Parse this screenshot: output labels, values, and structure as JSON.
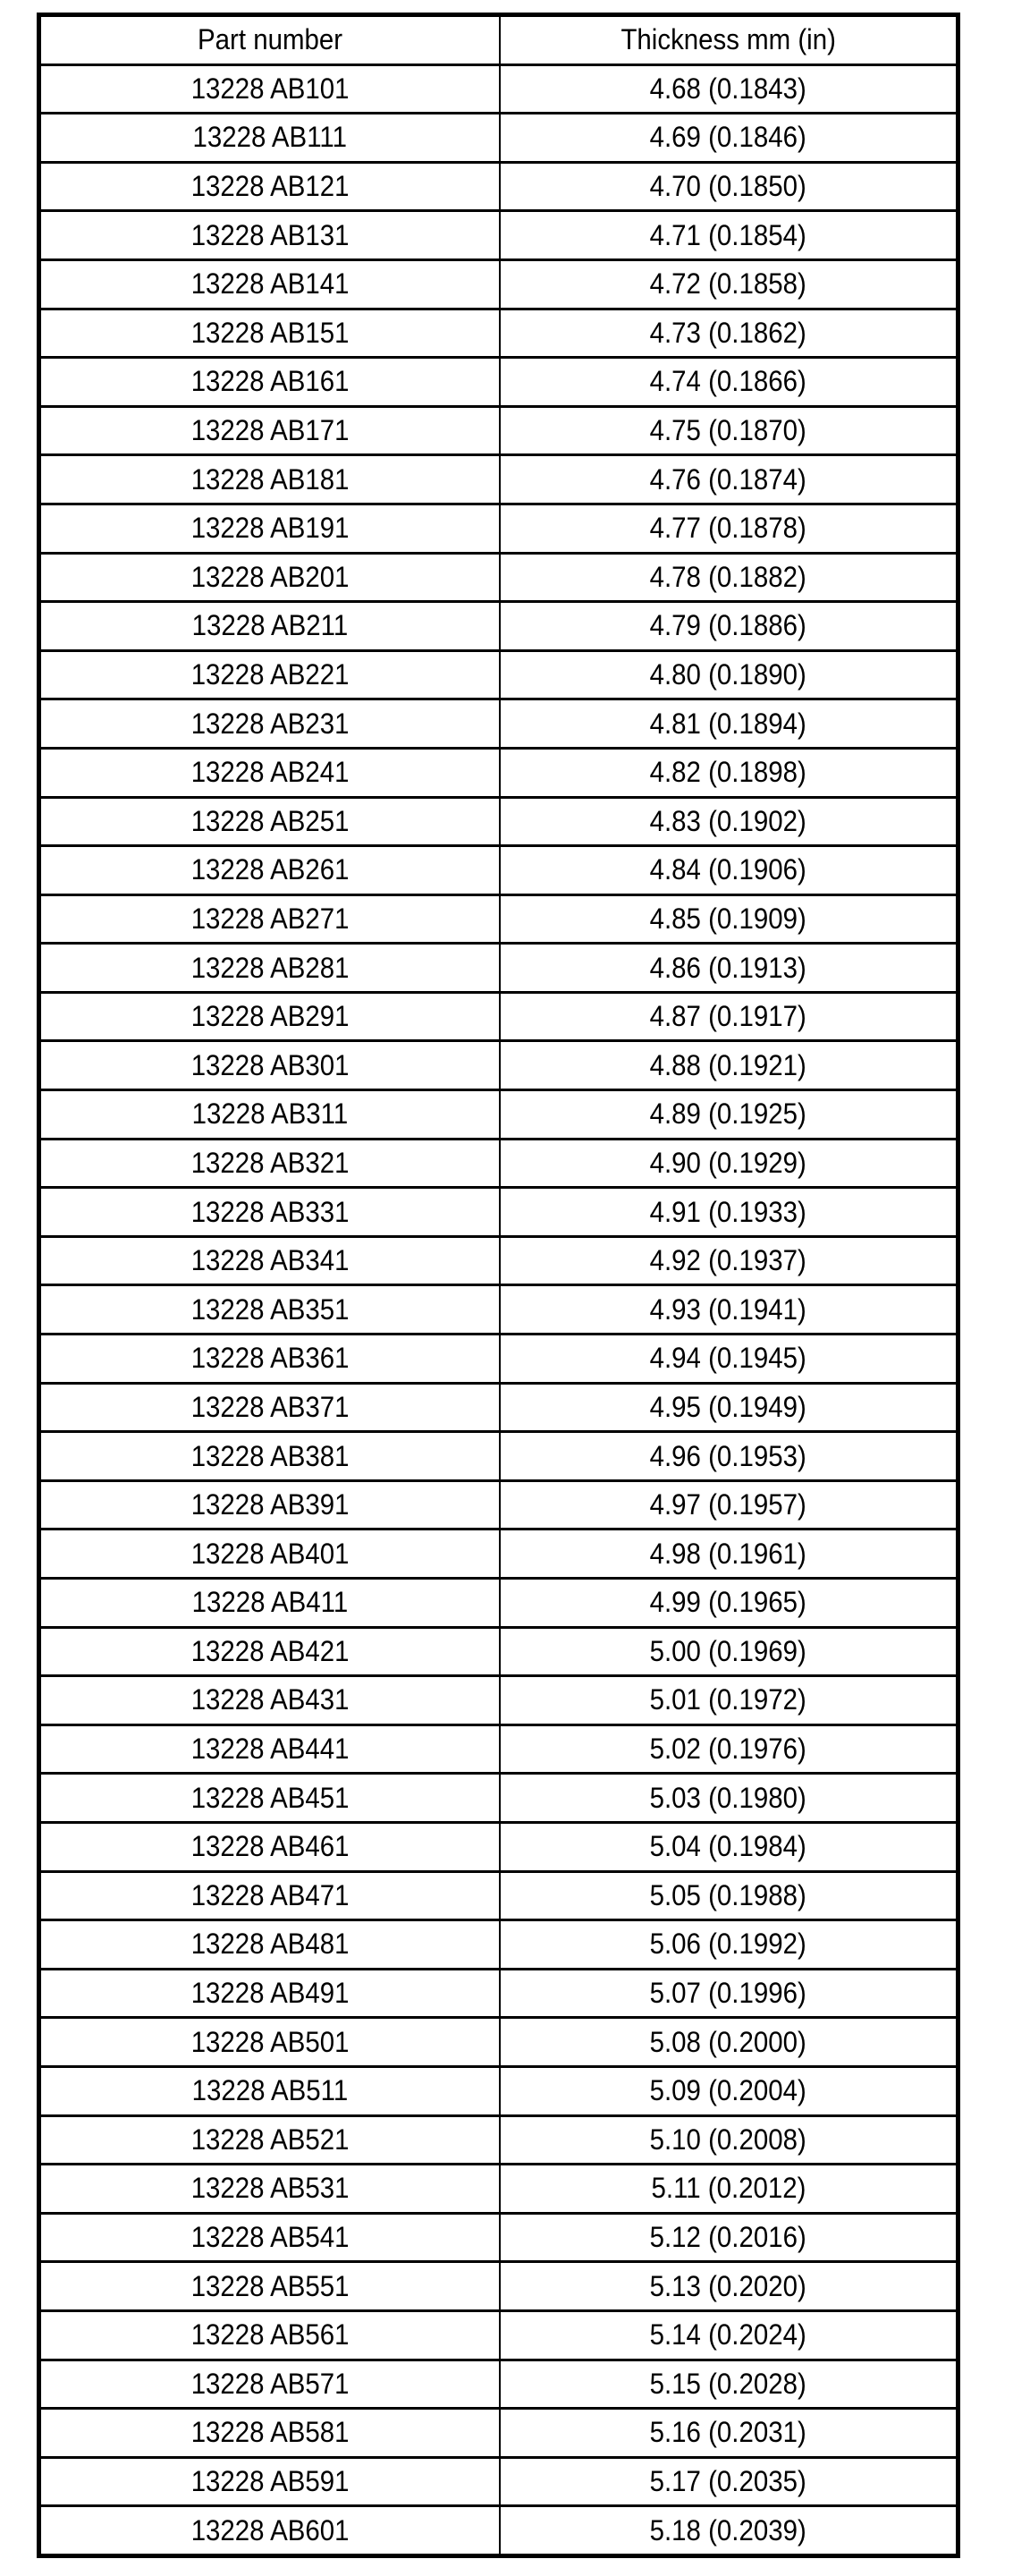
{
  "table": {
    "headers": [
      "Part number",
      "Thickness mm (in)"
    ],
    "rows": [
      [
        "13228 AB101",
        "4.68 (0.1843)"
      ],
      [
        "13228 AB111",
        "4.69 (0.1846)"
      ],
      [
        "13228 AB121",
        "4.70 (0.1850)"
      ],
      [
        "13228 AB131",
        "4.71 (0.1854)"
      ],
      [
        "13228 AB141",
        "4.72 (0.1858)"
      ],
      [
        "13228 AB151",
        "4.73 (0.1862)"
      ],
      [
        "13228 AB161",
        "4.74 (0.1866)"
      ],
      [
        "13228 AB171",
        "4.75 (0.1870)"
      ],
      [
        "13228 AB181",
        "4.76 (0.1874)"
      ],
      [
        "13228 AB191",
        "4.77 (0.1878)"
      ],
      [
        "13228 AB201",
        "4.78 (0.1882)"
      ],
      [
        "13228 AB211",
        "4.79 (0.1886)"
      ],
      [
        "13228 AB221",
        "4.80 (0.1890)"
      ],
      [
        "13228 AB231",
        "4.81 (0.1894)"
      ],
      [
        "13228 AB241",
        "4.82 (0.1898)"
      ],
      [
        "13228 AB251",
        "4.83 (0.1902)"
      ],
      [
        "13228 AB261",
        "4.84 (0.1906)"
      ],
      [
        "13228 AB271",
        "4.85 (0.1909)"
      ],
      [
        "13228 AB281",
        "4.86 (0.1913)"
      ],
      [
        "13228 AB291",
        "4.87 (0.1917)"
      ],
      [
        "13228 AB301",
        "4.88 (0.1921)"
      ],
      [
        "13228 AB311",
        "4.89 (0.1925)"
      ],
      [
        "13228 AB321",
        "4.90 (0.1929)"
      ],
      [
        "13228 AB331",
        "4.91 (0.1933)"
      ],
      [
        "13228 AB341",
        "4.92 (0.1937)"
      ],
      [
        "13228 AB351",
        "4.93 (0.1941)"
      ],
      [
        "13228 AB361",
        "4.94 (0.1945)"
      ],
      [
        "13228 AB371",
        "4.95 (0.1949)"
      ],
      [
        "13228 AB381",
        "4.96 (0.1953)"
      ],
      [
        "13228 AB391",
        "4.97 (0.1957)"
      ],
      [
        "13228 AB401",
        "4.98 (0.1961)"
      ],
      [
        "13228 AB411",
        "4.99 (0.1965)"
      ],
      [
        "13228 AB421",
        "5.00 (0.1969)"
      ],
      [
        "13228 AB431",
        "5.01 (0.1972)"
      ],
      [
        "13228 AB441",
        "5.02 (0.1976)"
      ],
      [
        "13228 AB451",
        "5.03 (0.1980)"
      ],
      [
        "13228 AB461",
        "5.04 (0.1984)"
      ],
      [
        "13228 AB471",
        "5.05 (0.1988)"
      ],
      [
        "13228 AB481",
        "5.06 (0.1992)"
      ],
      [
        "13228 AB491",
        "5.07 (0.1996)"
      ],
      [
        "13228 AB501",
        "5.08 (0.2000)"
      ],
      [
        "13228 AB511",
        "5.09 (0.2004)"
      ],
      [
        "13228 AB521",
        "5.10 (0.2008)"
      ],
      [
        "13228 AB531",
        "5.11 (0.2012)"
      ],
      [
        "13228 AB541",
        "5.12 (0.2016)"
      ],
      [
        "13228 AB551",
        "5.13 (0.2020)"
      ],
      [
        "13228 AB561",
        "5.14 (0.2024)"
      ],
      [
        "13228 AB571",
        "5.15 (0.2028)"
      ],
      [
        "13228 AB581",
        "5.16 (0.2031)"
      ],
      [
        "13228 AB591",
        "5.17 (0.2035)"
      ],
      [
        "13228 AB601",
        "5.18 (0.2039)"
      ]
    ]
  }
}
